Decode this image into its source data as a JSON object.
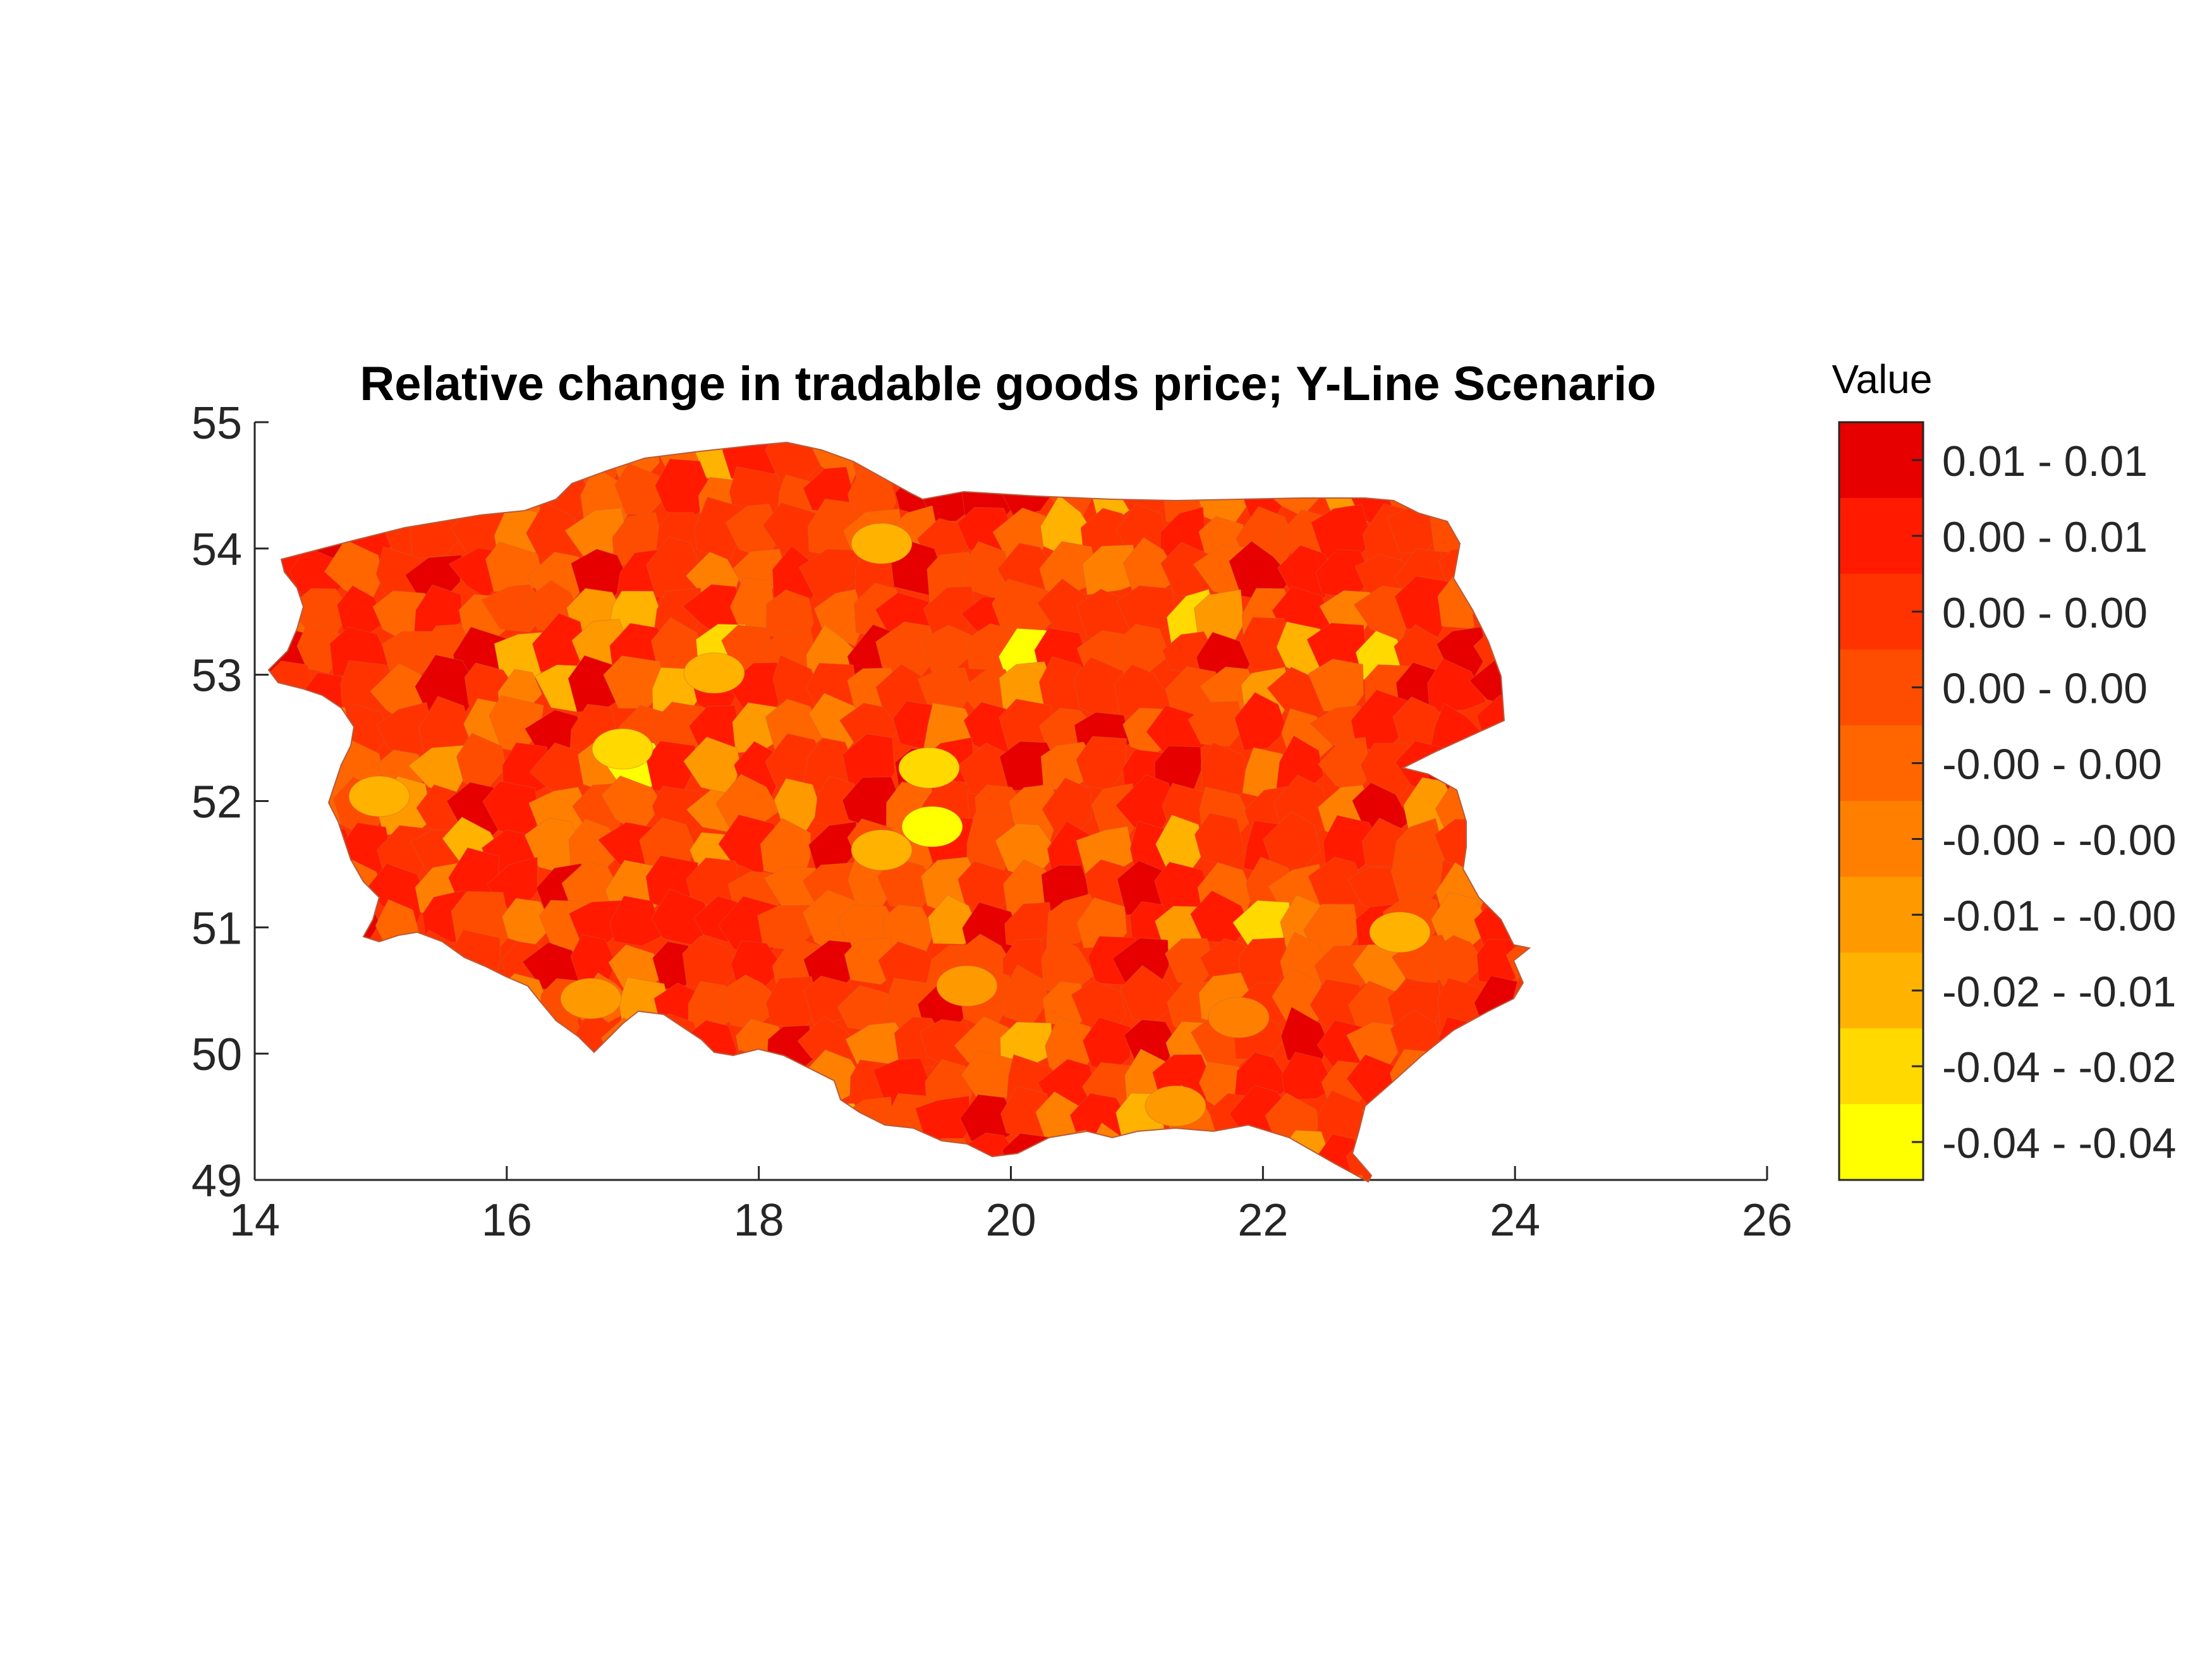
{
  "title": "Relative change in tradable goods price; Y-Line Scenario",
  "legend": {
    "title": "Value",
    "entries": [
      {
        "label": "0.01 - 0.01",
        "color": "#e60000"
      },
      {
        "label": "0.00 - 0.01",
        "color": "#ff1a00"
      },
      {
        "label": "0.00 - 0.00",
        "color": "#ff3300"
      },
      {
        "label": "0.00 - 0.00",
        "color": "#ff4d00"
      },
      {
        "label": "-0.00 - 0.00",
        "color": "#ff6600"
      },
      {
        "label": "-0.00 - -0.00",
        "color": "#ff8000"
      },
      {
        "label": "-0.01 - -0.00",
        "color": "#ff9900"
      },
      {
        "label": "-0.02 - -0.01",
        "color": "#ffb300"
      },
      {
        "label": "-0.04 - -0.02",
        "color": "#ffd900"
      },
      {
        "label": "-0.04 - -0.04",
        "color": "#ffff00"
      }
    ]
  },
  "chart_data": {
    "type": "choropleth map",
    "region": "Poland",
    "xlim": [
      14,
      26
    ],
    "ylim": [
      49,
      55
    ],
    "x_ticks": [
      "14",
      "16",
      "18",
      "20",
      "22",
      "24",
      "26"
    ],
    "y_ticks": [
      "49",
      "50",
      "51",
      "52",
      "53",
      "54",
      "55"
    ],
    "grid": false,
    "legend_position": "right"
  }
}
